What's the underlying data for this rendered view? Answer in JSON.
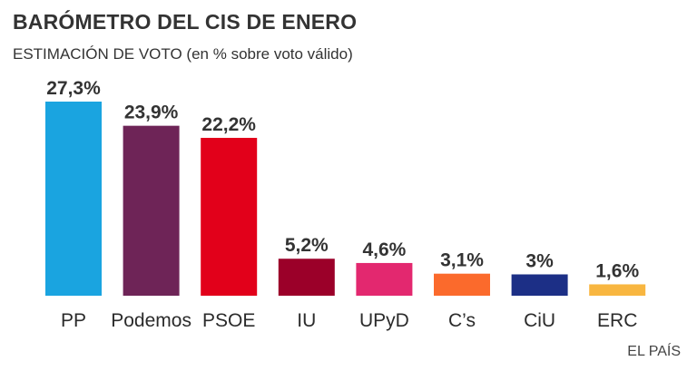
{
  "chart_data": {
    "type": "bar",
    "title": "BARÓMETRO DEL CIS DE ENERO",
    "subtitle": "ESTIMACIÓN DE VOTO (en % sobre voto válido)",
    "xlabel": "",
    "ylabel": "",
    "categories": [
      "PP",
      "Podemos",
      "PSOE",
      "IU",
      "UPyD",
      "C’s",
      "CiU",
      "ERC"
    ],
    "values": [
      27.3,
      23.9,
      22.2,
      5.2,
      4.6,
      3.1,
      3.0,
      1.6
    ],
    "value_labels": [
      "27,3%",
      "23,9%",
      "22,2%",
      "5,2%",
      "4,6%",
      "3,1%",
      "3%",
      "1,6%"
    ],
    "colors": [
      "#1aa4e0",
      "#6e2457",
      "#e2001a",
      "#9b0029",
      "#e3286f",
      "#fb6a2c",
      "#1c2f86",
      "#f8b640"
    ],
    "ylim": [
      0,
      27.3
    ],
    "grid": false,
    "legend": "none",
    "source": "EL PAÍS"
  }
}
